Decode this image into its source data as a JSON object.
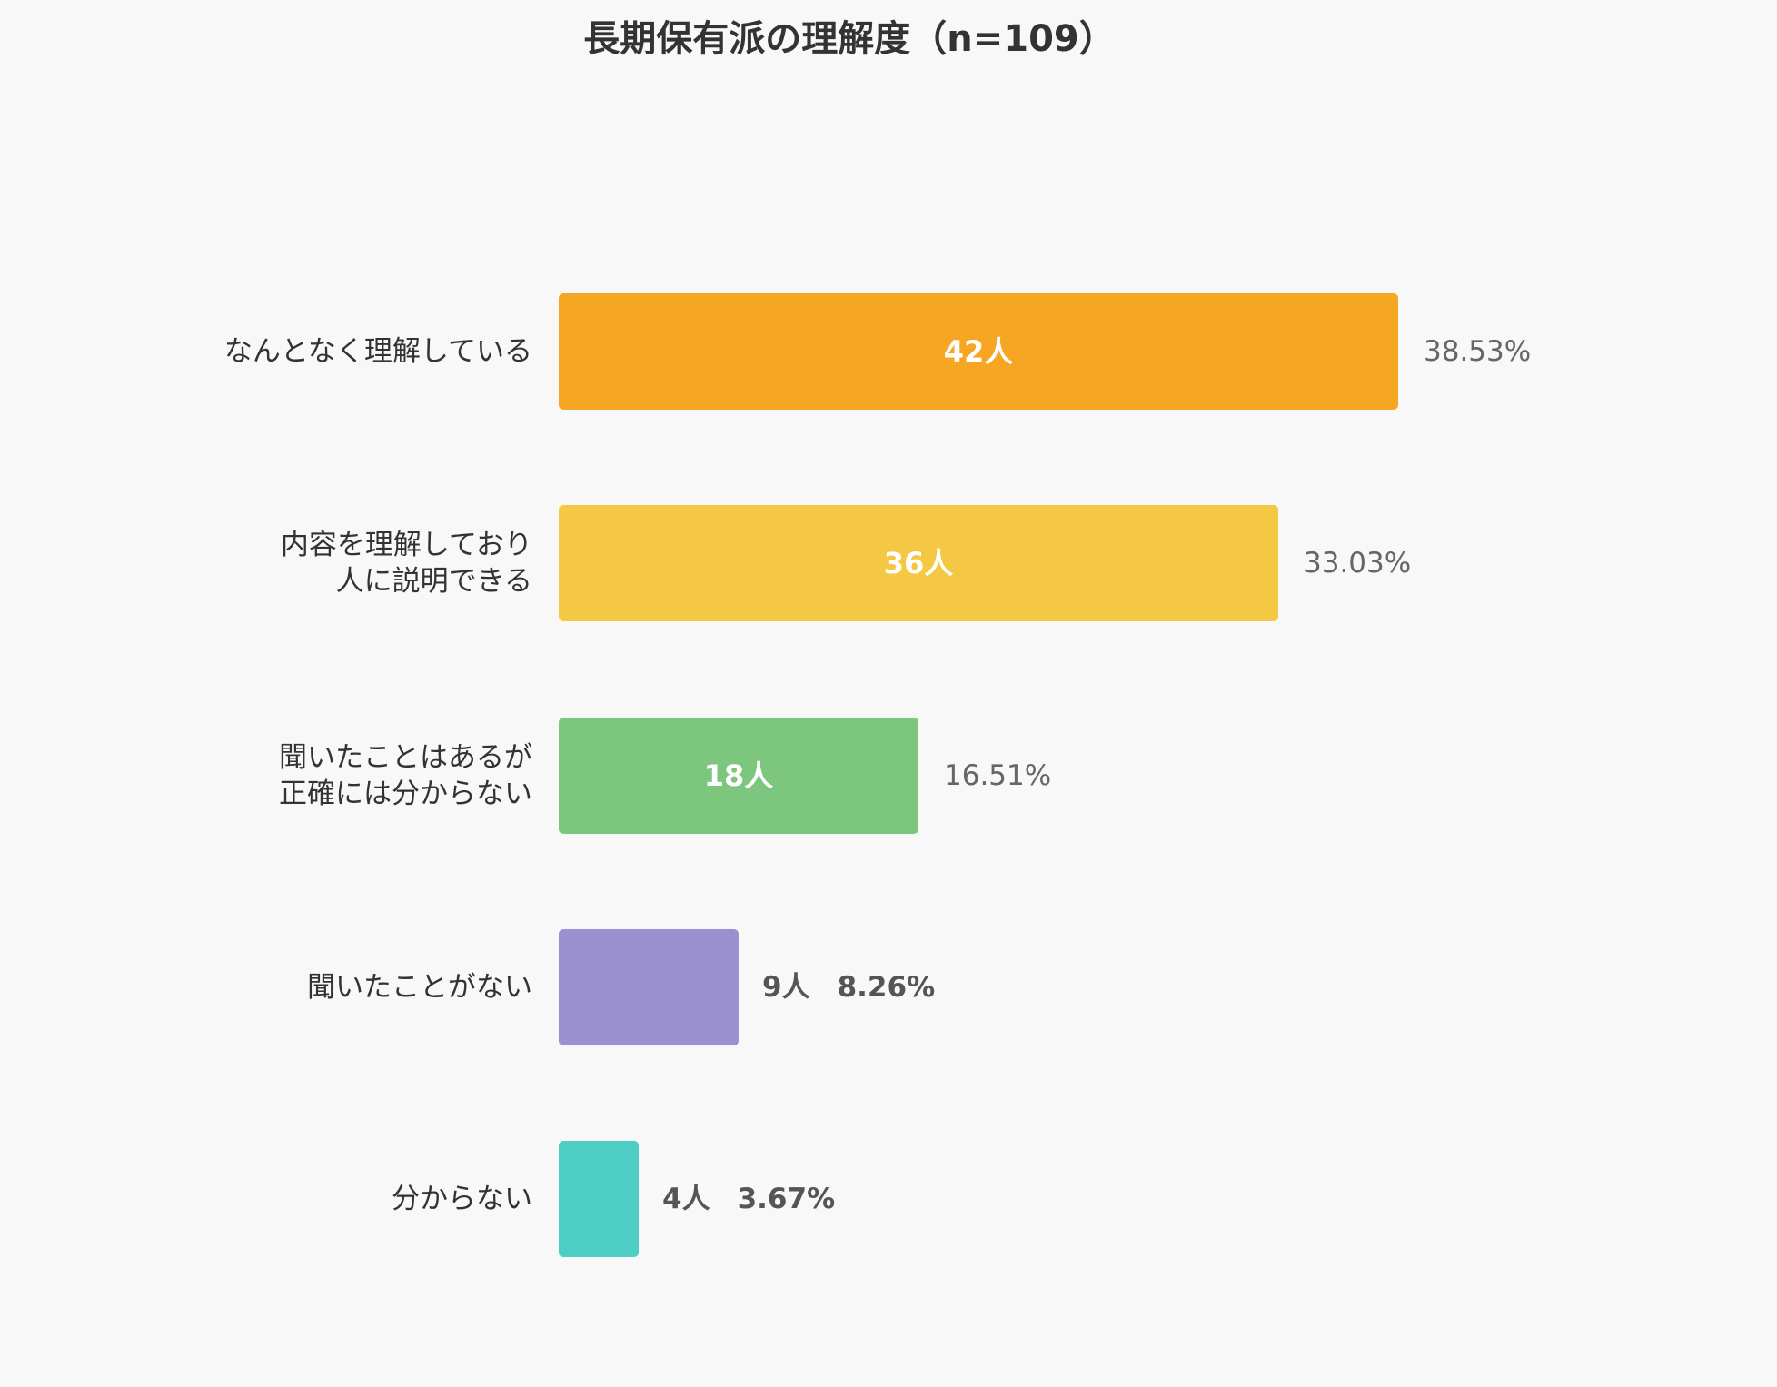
{
  "chart_data": {
    "type": "bar",
    "orientation": "horizontal",
    "title": "長期保有派の理解度（n=109）",
    "categories": [
      "なんとなく理解している",
      "内容を理解しており\n人に説明できる",
      "聞いたことはあるが\n正確には分からない",
      "聞いたことがない",
      "分からない"
    ],
    "values": [
      42,
      36,
      18,
      9,
      4
    ],
    "value_labels": [
      "42人",
      "36人",
      "18人",
      "9人",
      "4人"
    ],
    "percent_labels": [
      "38.53%",
      "33.03%",
      "16.51%",
      "8.26%",
      "3.67%"
    ],
    "colors": [
      "#f5a623",
      "#f4c842",
      "#7cc67e",
      "#9c91d0",
      "#4ecdc4"
    ],
    "xlabel": "",
    "ylabel": "",
    "grid": false
  }
}
